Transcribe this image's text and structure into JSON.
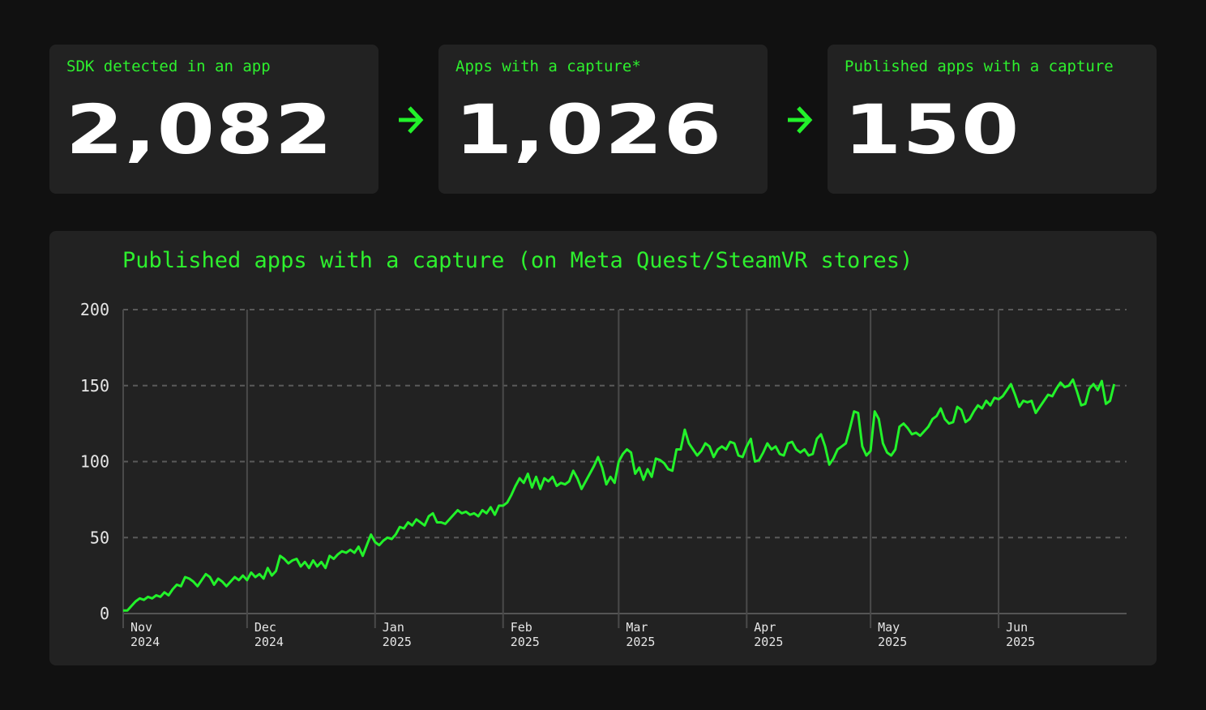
{
  "cards": [
    {
      "label": "SDK detected in an app",
      "value": "2,082"
    },
    {
      "label": "Apps with a capture*",
      "value": "1,026"
    },
    {
      "label": "Published apps with a capture",
      "value": "150"
    }
  ],
  "chart_data": {
    "type": "line",
    "title": "Published apps with a capture (on Meta Quest/SteamVR stores)",
    "color": "#22f22a",
    "grid": true,
    "xlim": [
      0,
      243
    ],
    "xticks": [
      {
        "value": 0,
        "label": "Nov 2024"
      },
      {
        "value": 30,
        "label": "Dec 2024"
      },
      {
        "value": 61,
        "label": "Jan 2025"
      },
      {
        "value": 92,
        "label": "Feb 2025"
      },
      {
        "value": 120,
        "label": "Mar 2025"
      },
      {
        "value": 151,
        "label": "Apr 2025"
      },
      {
        "value": 181,
        "label": "May 2025"
      },
      {
        "value": 212,
        "label": "Jun 2025"
      }
    ],
    "ylim": [
      0,
      200
    ],
    "yticks": [
      0,
      50,
      100,
      150,
      200
    ],
    "values": [
      2,
      2,
      5,
      8,
      10,
      9,
      11,
      10,
      12,
      11,
      14,
      12,
      16,
      19,
      18,
      24,
      23,
      21,
      18,
      22,
      26,
      24,
      19,
      23,
      21,
      18,
      21,
      24,
      22,
      25,
      22,
      27,
      24,
      26,
      23,
      30,
      25,
      28,
      38,
      36,
      33,
      35,
      36,
      31,
      34,
      30,
      35,
      31,
      34,
      30,
      38,
      36,
      39,
      41,
      40,
      42,
      40,
      44,
      38,
      45,
      52,
      47,
      45,
      48,
      50,
      49,
      52,
      57,
      56,
      60,
      58,
      62,
      60,
      58,
      64,
      66,
      60,
      60,
      59,
      62,
      65,
      68,
      66,
      67,
      65,
      66,
      64,
      68,
      66,
      70,
      65,
      71,
      71,
      73,
      78,
      84,
      89,
      86,
      92,
      83,
      90,
      82,
      89,
      87,
      90,
      84,
      86,
      85,
      87,
      94,
      89,
      82,
      87,
      92,
      97,
      103,
      96,
      85,
      90,
      86,
      100,
      105,
      108,
      106,
      92,
      96,
      88,
      95,
      90,
      102,
      101,
      99,
      95,
      94,
      108,
      108,
      121,
      112,
      108,
      104,
      107,
      112,
      110,
      103,
      108,
      110,
      108,
      113,
      112,
      104,
      103,
      110,
      115,
      100,
      101,
      106,
      112,
      108,
      110,
      105,
      104,
      112,
      113,
      108,
      106,
      108,
      104,
      105,
      115,
      118,
      110,
      98,
      102,
      108,
      110,
      112,
      122,
      133,
      132,
      110,
      104,
      107,
      133,
      128,
      112,
      106,
      104,
      108,
      123,
      125,
      122,
      118,
      119,
      117,
      120,
      123,
      128,
      130,
      135,
      128,
      125,
      126,
      136,
      134,
      126,
      128,
      133,
      137,
      135,
      140,
      137,
      142,
      141,
      143,
      147,
      151,
      144,
      136,
      140,
      139,
      140,
      132,
      136,
      140,
      144,
      143,
      148,
      152,
      149,
      150,
      154,
      146,
      137,
      138,
      148,
      151,
      147,
      153,
      138,
      140,
      151
    ]
  }
}
